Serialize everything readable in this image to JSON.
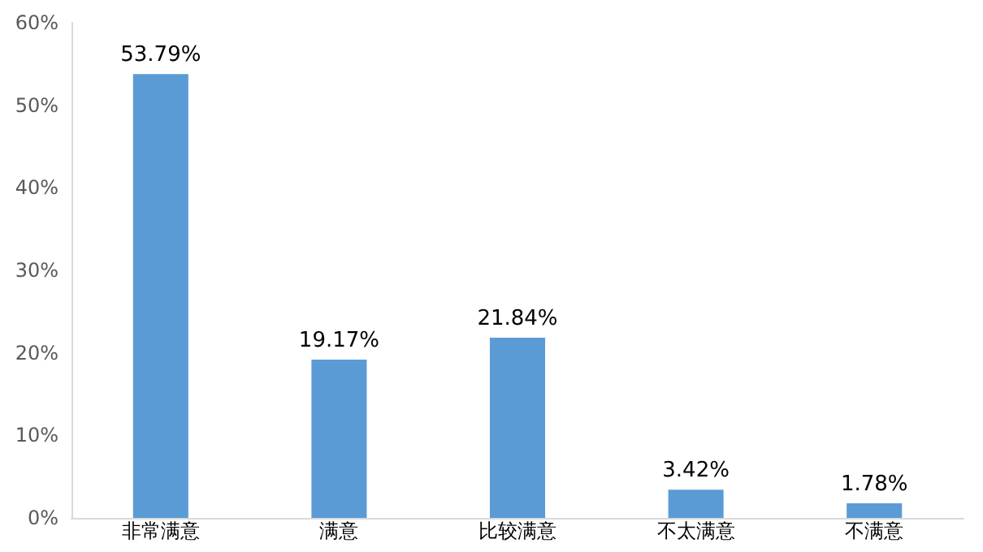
{
  "chart_data": {
    "type": "bar",
    "categories": [
      "非常满意",
      "满意",
      "比较满意",
      "不太满意",
      "不满意"
    ],
    "values": [
      53.79,
      19.17,
      21.84,
      3.42,
      1.78
    ],
    "value_labels": [
      "53.79%",
      "19.17%",
      "21.84%",
      "3.42%",
      "1.78%"
    ],
    "color": "#5b9bd5",
    "ylim": [
      0,
      60
    ],
    "yticks": [
      {
        "value": 0,
        "label": "0%"
      },
      {
        "value": 10,
        "label": "10%"
      },
      {
        "value": 20,
        "label": "20%"
      },
      {
        "value": 30,
        "label": "30%"
      },
      {
        "value": 40,
        "label": "40%"
      },
      {
        "value": 50,
        "label": "50%"
      },
      {
        "value": 60,
        "label": "60%"
      }
    ]
  }
}
